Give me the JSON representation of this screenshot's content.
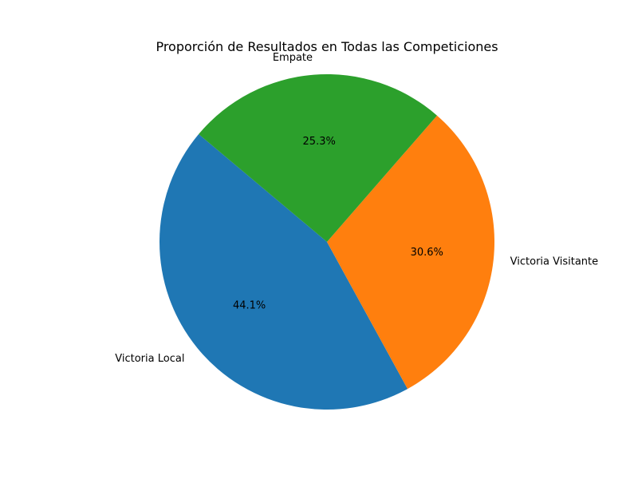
{
  "chart_data": {
    "type": "pie",
    "title": "Proporción de Resultados en Todas las Competiciones",
    "categories": [
      "Victoria Local",
      "Victoria Visitante",
      "Empate"
    ],
    "values": [
      44.1,
      30.6,
      25.3
    ],
    "value_labels": [
      "44.1%",
      "30.6%",
      "25.3%"
    ],
    "colors": [
      "#1f77b4",
      "#ff7f0e",
      "#2ca02c"
    ],
    "start_angle_deg": 140,
    "direction": "counterclockwise"
  }
}
